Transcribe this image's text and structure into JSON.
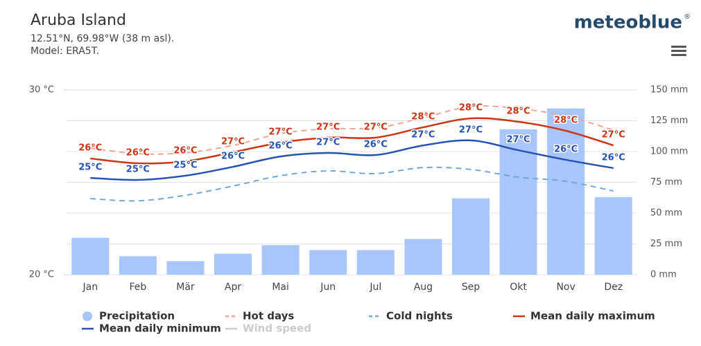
{
  "header": {
    "title": "Aruba Island",
    "coordinates": "12.51°N, 69.98°W (38 m asl).",
    "model": "Model: ERA5T.",
    "logo": "meteoblue",
    "logo_mark": "®"
  },
  "chart_data": {
    "type": "combo",
    "categories": [
      "Jan",
      "Feb",
      "Mär",
      "Apr",
      "Mai",
      "Jun",
      "Jul",
      "Aug",
      "Sep",
      "Okt",
      "Nov",
      "Dez"
    ],
    "ylim": [
      20,
      30
    ],
    "yticks": [
      {
        "value": 20,
        "label": "20 °C"
      },
      {
        "value": 30,
        "label": "30 °C"
      }
    ],
    "y2lim": [
      0,
      150
    ],
    "y2ticks": [
      {
        "value": 0,
        "label": "0 mm"
      },
      {
        "value": 25,
        "label": "25 mm"
      },
      {
        "value": 50,
        "label": "50 mm"
      },
      {
        "value": 75,
        "label": "75 mm"
      },
      {
        "value": 100,
        "label": "100 mm"
      },
      {
        "value": 125,
        "label": "125 mm"
      },
      {
        "value": 150,
        "label": "150 mm"
      }
    ],
    "grid": true,
    "series": [
      {
        "name": "Precipitation",
        "type": "bar",
        "axis": "y2",
        "color": "#a9c6fb",
        "values": [
          30,
          15,
          11,
          17,
          24,
          20,
          20,
          29,
          62,
          118,
          135,
          63
        ]
      },
      {
        "name": "Hot days",
        "type": "line",
        "dashed": true,
        "color": "#f0a493",
        "values": [
          26.85,
          26.55,
          26.6,
          27.0,
          27.64,
          27.9,
          27.94,
          28.5,
          29.1,
          29.0,
          28.58,
          27.83
        ]
      },
      {
        "name": "Cold nights",
        "type": "line",
        "dashed": true,
        "color": "#6fa8dc",
        "values": [
          24.12,
          24.0,
          24.3,
          24.8,
          25.36,
          25.62,
          25.47,
          25.8,
          25.7,
          25.28,
          25.06,
          24.53
        ]
      },
      {
        "name": "Mean daily maximum",
        "type": "line",
        "color": "#cc3414",
        "values": [
          26.29,
          26.03,
          26.14,
          26.63,
          27.15,
          27.42,
          27.42,
          27.98,
          28.46,
          28.28,
          27.79,
          27.0
        ],
        "value_labels": [
          "26°C",
          "26°C",
          "26°C",
          "27°C",
          "27°C",
          "27°C",
          "27°C",
          "28°C",
          "28°C",
          "28°C",
          "28°C",
          "27°C"
        ]
      },
      {
        "name": "Mean daily minimum",
        "type": "line",
        "color": "#2752b4",
        "values": [
          25.24,
          25.13,
          25.36,
          25.84,
          26.4,
          26.59,
          26.48,
          27.0,
          27.27,
          26.74,
          26.22,
          25.77
        ],
        "value_labels": [
          "25°C",
          "25°C",
          "25°C",
          "26°C",
          "26°C",
          "27°C",
          "26°C",
          "27°C",
          "27°C",
          "27°C",
          "26°C",
          "26°C"
        ]
      },
      {
        "name": "Wind speed",
        "type": "line",
        "visible": false,
        "color": "#999999"
      }
    ]
  }
}
